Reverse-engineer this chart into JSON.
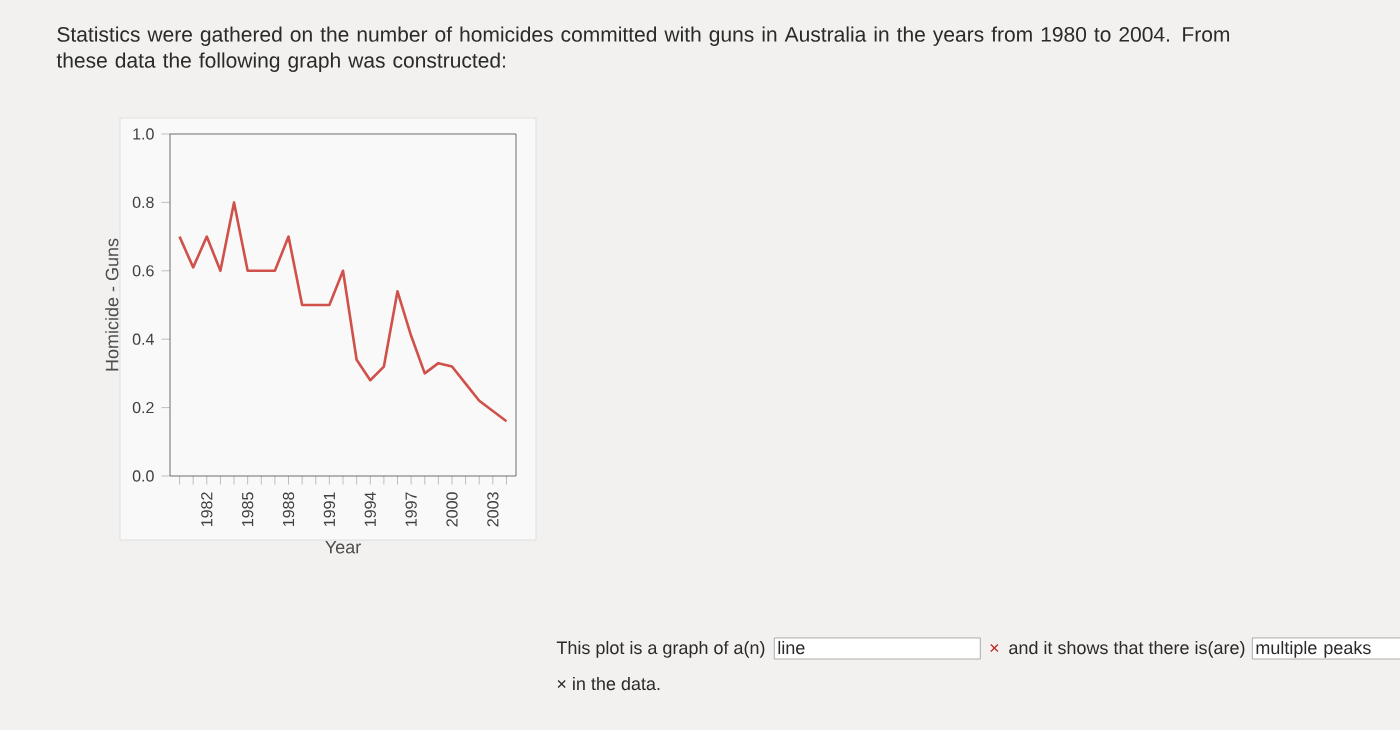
{
  "chart_data": {
    "type": "line",
    "title": "Statistics were gathered on the number of homicides committed with guns in Australia in the years from 1980 to 2004.  From these data the following graph was constructed:",
    "xlabel": "Year",
    "ylabel": "Homicide - Guns",
    "annotations": [
      "This plot is a graph of a(n)",
      "line",
      "×",
      "and it shows that there is(are)",
      "multiple peaks",
      "× in the data."
    ],
    "x": [
      1980,
      1981,
      1982,
      1983,
      1984,
      1985,
      1986,
      1987,
      1988,
      1989,
      1990,
      1991,
      1992,
      1993,
      1994,
      1995,
      1996,
      1997,
      1998,
      1999,
      2000,
      2001,
      2002,
      2003,
      2004
    ],
    "values": [
      0.7,
      0.61,
      0.7,
      0.6,
      0.8,
      0.6,
      0.6,
      0.6,
      0.7,
      0.5,
      0.5,
      0.5,
      0.6,
      0.34,
      0.28,
      0.32,
      0.54,
      0.41,
      0.3,
      0.33,
      0.32,
      0.27,
      0.22,
      0.19,
      0.16
    ],
    "color": "#d0504a",
    "xlim": [
      1979.3,
      2004.7
    ],
    "ylim": [
      0,
      1
    ],
    "xticks": [
      {
        "value": 1980,
        "label": null
      },
      {
        "value": 1981,
        "label": null
      },
      1982,
      {
        "value": 1983,
        "label": null
      },
      {
        "value": 1984,
        "label": null
      },
      1985,
      {
        "value": 1986,
        "label": null
      },
      {
        "value": 1987,
        "label": null
      },
      1988,
      {
        "value": 1989,
        "label": null
      },
      {
        "value": 1990,
        "label": null
      },
      1991,
      {
        "value": 1992,
        "label": null
      },
      {
        "value": 1993,
        "label": null
      },
      1994,
      {
        "value": 1995,
        "label": null
      },
      {
        "value": 1996,
        "label": null
      },
      1997,
      {
        "value": 1998,
        "label": null
      },
      {
        "value": 1999,
        "label": null
      },
      2000,
      {
        "value": 2001,
        "label": null
      },
      {
        "value": 2002,
        "label": null
      },
      2003,
      {
        "value": 2004,
        "label": null
      }
    ],
    "yticks": [
      {
        "value": 0,
        "label": "0.0"
      },
      0.2,
      0.4,
      0.6,
      0.8,
      {
        "value": 1,
        "label": "1.0"
      }
    ]
  }
}
